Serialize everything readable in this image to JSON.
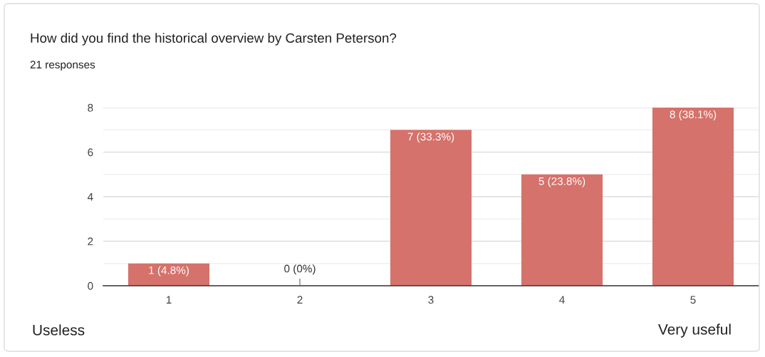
{
  "chart_data": {
    "type": "bar",
    "title": "How did you find the historical overview by Carsten Peterson?",
    "subtitle": "21 responses",
    "categories": [
      "1",
      "2",
      "3",
      "4",
      "5"
    ],
    "values": [
      1,
      0,
      7,
      5,
      8
    ],
    "value_labels": [
      "1 (4.8%)",
      "0 (0%)",
      "7 (33.3%)",
      "5 (23.8%)",
      "8 (38.1%)"
    ],
    "color": "#d5726b",
    "ylim": [
      0,
      8
    ],
    "yticks": [
      0,
      {
        "value": 1,
        "label": null
      },
      2,
      {
        "value": 3,
        "label": null
      },
      4,
      {
        "value": 5,
        "label": null
      },
      6,
      {
        "value": 7,
        "label": null
      },
      8
    ],
    "grid": "y",
    "legend": false,
    "annotations": [
      "Useless",
      "Very useful"
    ]
  }
}
